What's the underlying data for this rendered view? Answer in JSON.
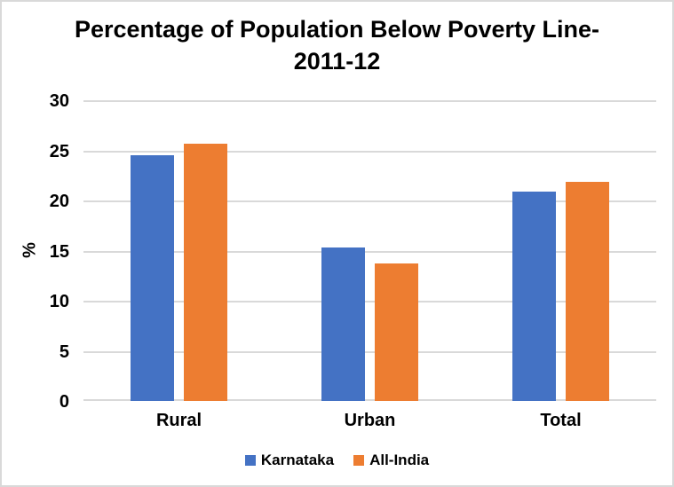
{
  "chart_data": {
    "type": "bar",
    "title": "Percentage of Population Below Poverty Line- 2011-12",
    "title_lines": [
      "Percentage of Population Below Poverty Line-",
      "2011-12"
    ],
    "categories": [
      "Rural",
      "Urban",
      "Total"
    ],
    "series": [
      {
        "name": "Karnataka",
        "color": "#4472C4",
        "values": [
          24.5,
          15.3,
          20.9
        ]
      },
      {
        "name": "All-India",
        "color": "#ED7D31",
        "values": [
          25.7,
          13.7,
          21.9
        ]
      }
    ],
    "xlabel": "",
    "ylabel": "%",
    "ylim": [
      0,
      30
    ],
    "yticks": [
      0,
      5,
      10,
      15,
      20,
      25,
      30
    ],
    "grid": true,
    "legend_position": "bottom"
  },
  "colors": {
    "background": "#FFFFFF",
    "border": "#D9D9D9",
    "gridline": "#D9D9D9",
    "axis_line": "#D9D9D9",
    "text": "#000000"
  }
}
